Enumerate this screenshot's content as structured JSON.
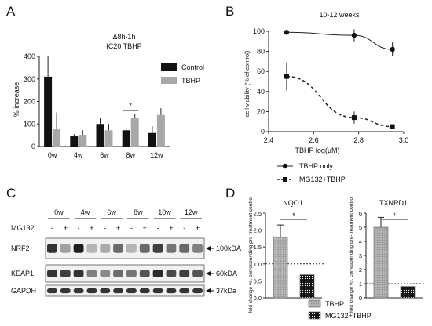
{
  "panels": {
    "a": "A",
    "b": "B",
    "c": "C",
    "d": "D"
  },
  "chart_data": [
    {
      "type": "bar",
      "title": "Δ8h-1h",
      "subtitle": "IC20 TBHP",
      "ylabel": "% increase",
      "xlabel": "",
      "ylim": [
        0,
        400
      ],
      "yticks": [
        0,
        100,
        200,
        300,
        400
      ],
      "categories": [
        "0w",
        "4w",
        "6w",
        "8w",
        "12w"
      ],
      "series": [
        {
          "name": "Control",
          "color": "#111111",
          "values": [
            310,
            45,
            100,
            72,
            60
          ],
          "err": [
            90,
            10,
            25,
            12,
            30
          ]
        },
        {
          "name": "TBHP",
          "color": "#a8a8a8",
          "values": [
            76,
            52,
            72,
            128,
            140
          ],
          "err": [
            75,
            20,
            28,
            18,
            30
          ]
        }
      ],
      "significance": {
        "label": "*",
        "category": "8w"
      },
      "legend": "top-right"
    },
    {
      "type": "line",
      "title": "10-12 weeks",
      "xlabel": "TBHP log(μM)",
      "ylabel": "cell viability (% of control)",
      "xlim": [
        2.4,
        3.0
      ],
      "ylim": [
        0,
        100
      ],
      "xticks": [
        "2.4",
        "2.6",
        "2.8",
        "3.0"
      ],
      "yticks": [
        0,
        20,
        40,
        60,
        80,
        100
      ],
      "series": [
        {
          "name": "TBHP only",
          "marker": "circle",
          "dashed": false,
          "x": [
            2.48,
            2.78,
            2.95
          ],
          "y": [
            99,
            96,
            82
          ],
          "err": [
            2,
            6,
            7
          ]
        },
        {
          "name": "MG132+TBHP",
          "marker": "square",
          "dashed": true,
          "x": [
            2.48,
            2.78,
            2.95
          ],
          "y": [
            55,
            14,
            5
          ],
          "err": [
            14,
            6,
            1
          ]
        }
      ],
      "legend": "bottom"
    },
    {
      "type": "bar",
      "title": "NQO1",
      "ylabel": "fold change vs. corresponding pre-treatment control",
      "ylim": [
        0,
        2.5
      ],
      "yticks": [
        "0.0",
        "0.5",
        "1.0",
        "1.5",
        "2.0",
        "2.5"
      ],
      "categories": [
        "TBHP",
        "MG132+TBHP"
      ],
      "values": [
        1.8,
        0.68
      ],
      "err": [
        0.35,
        0
      ],
      "reference": 1.0,
      "significance": "*"
    },
    {
      "type": "bar",
      "title": "TXNRD1",
      "ylabel": "fold change vs. corresponding pre-treatment control",
      "ylim": [
        0,
        6
      ],
      "yticks": [
        "0",
        "1",
        "2",
        "3",
        "4",
        "5",
        "6"
      ],
      "categories": [
        "TBHP",
        "MG132+TBHP"
      ],
      "values": [
        5.0,
        0.8
      ],
      "err": [
        0.7,
        0
      ],
      "reference": 1.0,
      "significance": "*"
    }
  ],
  "blot": {
    "mg132_label": "MG132",
    "timepoints": [
      "0w",
      "4w",
      "6w",
      "8w",
      "10w",
      "12w"
    ],
    "lane_signs": [
      "-",
      "+",
      "-",
      "+",
      "-",
      "+",
      "-",
      "+",
      "-",
      "+",
      "-",
      "+"
    ],
    "rows": [
      {
        "label": "NRF2",
        "size": "100kDA",
        "intensities": [
          0.85,
          0.35,
          0.95,
          0.25,
          0.3,
          0.6,
          0.25,
          0.6,
          0.8,
          0.55,
          0.6,
          0.5
        ]
      },
      {
        "label": "KEAP1",
        "size": "60kDA",
        "intensities": [
          0.85,
          0.8,
          0.85,
          0.5,
          0.45,
          0.6,
          0.55,
          0.7,
          0.9,
          0.75,
          0.8,
          0.7
        ]
      },
      {
        "label": "GAPDH",
        "size": "37kDa",
        "intensities": [
          0.85,
          0.85,
          0.85,
          0.85,
          0.85,
          0.85,
          0.85,
          0.85,
          0.85,
          0.85,
          0.85,
          0.85
        ]
      }
    ]
  },
  "legend_d": [
    {
      "name": "TBHP",
      "pattern": "grid"
    },
    {
      "name": "MG132+TBHP",
      "pattern": "dots"
    }
  ]
}
